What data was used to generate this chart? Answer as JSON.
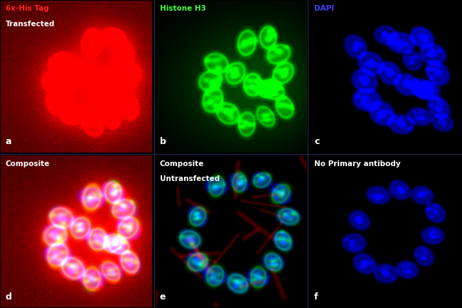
{
  "figsize": [
    6.5,
    4.34
  ],
  "dpi": 100,
  "img_size": 200,
  "panel_size": 200,
  "transfected_cells": [
    [
      120,
      55,
      18,
      13,
      0.9
    ],
    [
      148,
      48,
      16,
      12,
      1.0
    ],
    [
      162,
      70,
      17,
      13,
      0.85
    ],
    [
      168,
      95,
      17,
      13,
      0.9
    ],
    [
      155,
      118,
      16,
      12,
      0.8
    ],
    [
      170,
      140,
      16,
      12,
      0.85
    ],
    [
      145,
      152,
      16,
      11,
      0.75
    ],
    [
      120,
      162,
      17,
      12,
      0.8
    ],
    [
      95,
      148,
      17,
      14,
      0.85
    ],
    [
      75,
      130,
      18,
      14,
      0.9
    ],
    [
      72,
      105,
      17,
      14,
      0.85
    ],
    [
      80,
      82,
      17,
      14,
      0.8
    ],
    [
      105,
      95,
      16,
      13,
      0.85
    ],
    [
      128,
      110,
      16,
      13,
      0.9
    ],
    [
      148,
      115,
      15,
      12,
      0.8
    ]
  ],
  "dapi_extra_cells": [
    [
      60,
      60,
      16,
      13,
      0.75
    ],
    [
      100,
      45,
      15,
      12,
      0.7
    ],
    [
      135,
      78,
      14,
      11,
      0.7
    ],
    [
      175,
      160,
      14,
      11,
      0.65
    ]
  ],
  "untransfected_cells": [
    [
      80,
      40,
      15,
      11,
      0.7
    ],
    [
      110,
      35,
      14,
      10,
      0.75
    ],
    [
      140,
      32,
      13,
      10,
      0.7
    ],
    [
      165,
      50,
      15,
      11,
      0.75
    ],
    [
      175,
      80,
      15,
      11,
      0.7
    ],
    [
      168,
      112,
      14,
      11,
      0.8
    ],
    [
      155,
      140,
      14,
      11,
      0.75
    ],
    [
      135,
      160,
      15,
      11,
      0.7
    ],
    [
      108,
      168,
      15,
      12,
      0.75
    ],
    [
      78,
      158,
      15,
      12,
      0.7
    ],
    [
      55,
      140,
      15,
      12,
      0.75
    ],
    [
      45,
      110,
      15,
      12,
      0.7
    ],
    [
      55,
      80,
      14,
      11,
      0.75
    ]
  ],
  "noprimary_cells": [
    [
      90,
      52,
      15,
      11,
      0.75
    ],
    [
      118,
      45,
      14,
      11,
      0.8
    ],
    [
      148,
      52,
      14,
      11,
      0.75
    ],
    [
      165,
      75,
      14,
      11,
      0.75
    ],
    [
      162,
      105,
      14,
      11,
      0.75
    ],
    [
      150,
      132,
      14,
      11,
      0.7
    ],
    [
      128,
      150,
      14,
      11,
      0.75
    ],
    [
      100,
      155,
      15,
      12,
      0.7
    ],
    [
      72,
      142,
      15,
      12,
      0.75
    ],
    [
      58,
      115,
      15,
      12,
      0.7
    ],
    [
      65,
      85,
      14,
      11,
      0.75
    ]
  ],
  "panel_letters": [
    "a",
    "b",
    "c",
    "d",
    "e",
    "f"
  ],
  "panel_titles": [
    [
      [
        "6x-His Tag",
        "#ff2222"
      ],
      [
        "Transfected",
        "#ffffff"
      ]
    ],
    [
      [
        "Histone H3",
        "#44ff44"
      ]
    ],
    [
      [
        "DAPI",
        "#4444ff"
      ]
    ],
    [
      [
        "Composite",
        "#ffffff"
      ]
    ],
    [
      [
        "Composite",
        "#ffffff"
      ],
      [
        "Untransfected",
        "#ffffff"
      ]
    ],
    [
      [
        "No Primary antibody",
        "#ffffff"
      ]
    ]
  ]
}
